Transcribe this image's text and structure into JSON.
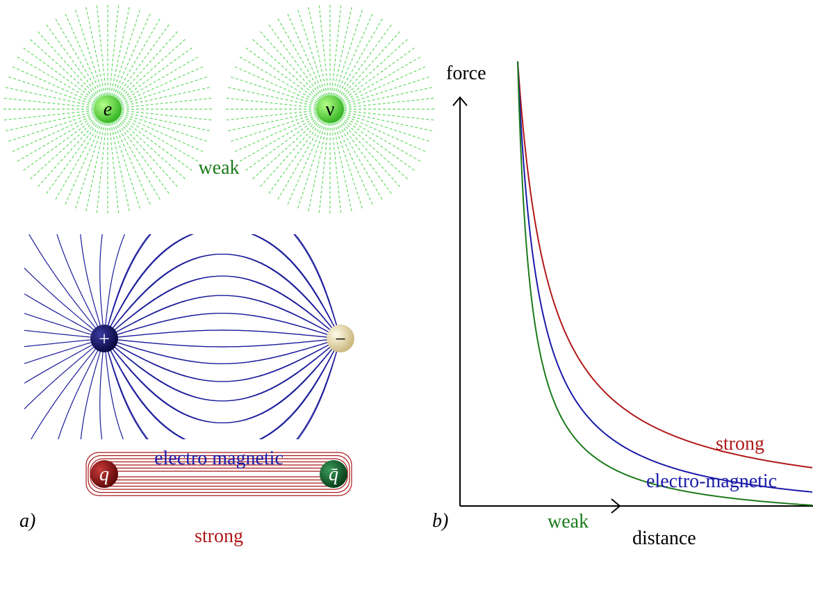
{
  "panel_a": {
    "label": "a)",
    "weak": {
      "particles": [
        "e",
        "ν"
      ],
      "label": "weak"
    },
    "electromagnetic": {
      "particles": [
        "+",
        "−"
      ],
      "label": "electro magnetic"
    },
    "strong": {
      "particles": [
        "q",
        "q̄"
      ],
      "label": "strong"
    }
  },
  "panel_b": {
    "label": "b)",
    "y_axis": "force",
    "x_axis": "distance",
    "curves": [
      {
        "label": "strong"
      },
      {
        "label": "electro-magnetic"
      },
      {
        "label": "weak"
      }
    ]
  }
}
